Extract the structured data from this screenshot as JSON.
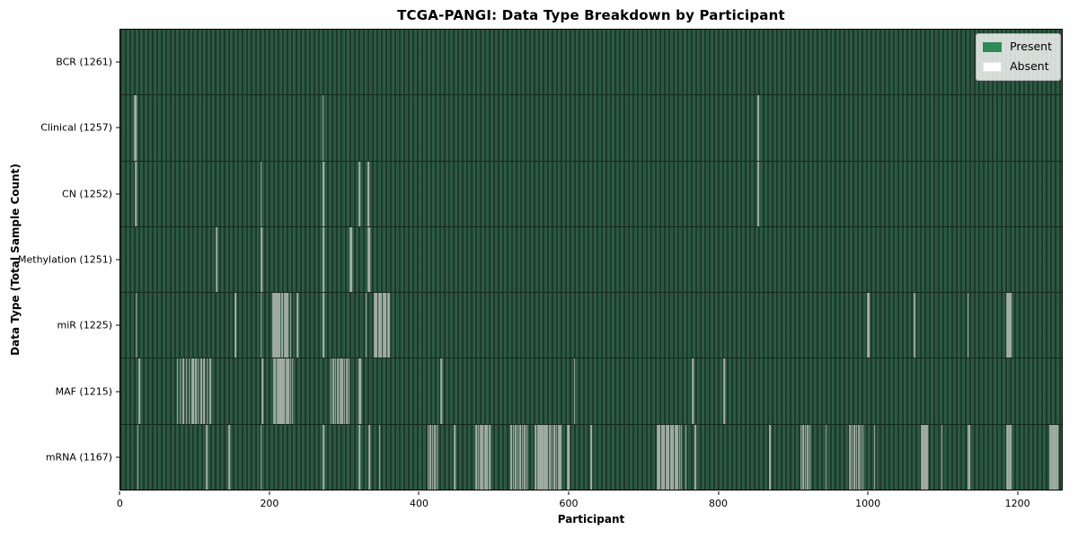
{
  "title": "TCGA-PANGI: Data Type Breakdown by Participant",
  "axes": {
    "xlabel": "Participant",
    "ylabel": "Data Type (Total Sample Count)"
  },
  "legend": {
    "items": [
      {
        "label": "Present",
        "color": "#2e8b57"
      },
      {
        "label": "Absent",
        "color": "#ffffff"
      }
    ]
  },
  "chart_data": {
    "type": "heatmap",
    "title": "TCGA-PANGI: Data Type Breakdown by Participant",
    "xlabel": "Participant",
    "ylabel": "Data Type (Total Sample Count)",
    "legend_position": "upper right",
    "n_participants": 1261,
    "xlim": [
      -0.5,
      1260.5
    ],
    "x_ticks": [
      0,
      200,
      400,
      600,
      800,
      1000,
      1200
    ],
    "colors": {
      "present": "#2e8b57",
      "absent": "#ffffff",
      "stripe_light": "#2d5c45",
      "stripe_dark": "#1d3a2a",
      "absent_line": "#a6b0a8",
      "row_separator": "#16281d"
    },
    "rows": [
      {
        "label": "BCR",
        "count": 1261,
        "absent": []
      },
      {
        "label": "Clinical",
        "count": 1257,
        "absent": [
          19,
          20,
          271,
          854
        ]
      },
      {
        "label": "CN",
        "count": 1252,
        "absent": [
          20,
          21,
          188,
          271,
          272,
          320,
          331,
          332,
          854
        ]
      },
      {
        "label": "Methylation",
        "count": 1251,
        "absent": [
          128,
          129,
          188,
          189,
          271,
          272,
          308,
          309,
          332,
          333
        ]
      },
      {
        "label": "miR",
        "count": 1225,
        "absent": [
          21,
          154,
          188,
          204,
          205,
          206,
          208,
          210,
          213,
          216,
          220,
          222,
          224,
          228,
          237,
          271,
          272,
          329,
          340,
          343,
          346,
          349,
          352,
          355,
          358,
          360,
          1001,
          1002,
          1063,
          1064,
          1135,
          1187,
          1189,
          1190,
          1191,
          1193
        ]
      },
      {
        "label": "MAF",
        "count": 1215,
        "absent": [
          25,
          76,
          80,
          84,
          88,
          92,
          96,
          97,
          100,
          101,
          104,
          108,
          112,
          116,
          120,
          190,
          205,
          207,
          210,
          213,
          214,
          216,
          219,
          222,
          225,
          228,
          230,
          282,
          285,
          288,
          291,
          294,
          295,
          297,
          300,
          303,
          306,
          320,
          321,
          429,
          430,
          608,
          766,
          767,
          808,
          809
        ]
      },
      {
        "label": "mRNA",
        "count": 1167,
        "absent": [
          23,
          115,
          145,
          188,
          272,
          320,
          333,
          347,
          412,
          415,
          418,
          421,
          424,
          447,
          476,
          479,
          482,
          485,
          488,
          491,
          494,
          523,
          526,
          529,
          532,
          535,
          538,
          541,
          544,
          556,
          559,
          562,
          564,
          566,
          568,
          570,
          572,
          575,
          578,
          581,
          584,
          587,
          589,
          599,
          600,
          630,
          719,
          722,
          725,
          728,
          731,
          734,
          737,
          740,
          743,
          746,
          749,
          751,
          757,
          770,
          869,
          870,
          911,
          914,
          917,
          920,
          923,
          945,
          977,
          980,
          983,
          986,
          989,
          992,
          994,
          1010,
          1073,
          1075,
          1077,
          1079,
          1081,
          1100,
          1135,
          1137,
          1187,
          1189,
          1191,
          1193,
          1245,
          1247,
          1249,
          1251,
          1253,
          1255
        ]
      }
    ]
  }
}
